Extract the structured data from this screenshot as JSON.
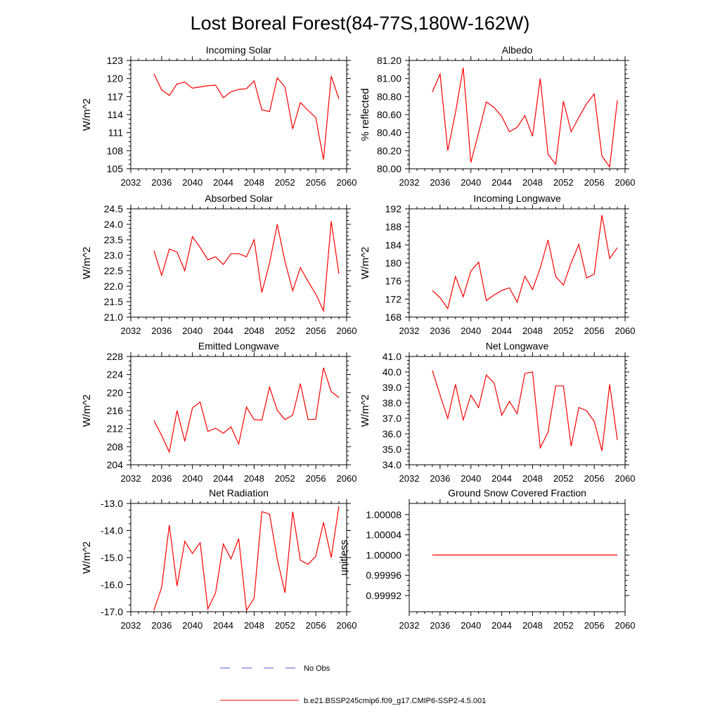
{
  "figure": {
    "title": "Lost Boreal Forest(84-77S,180W-162W)",
    "legend": {
      "entries": [
        {
          "label": "No Obs",
          "color": "#5a5ad0",
          "style": "dashed"
        },
        {
          "label": "b.e21.BSSP245cmip6.f09_g17.CMIP6-SSP2-4.5.001",
          "color": "#ff0000",
          "style": "solid"
        }
      ]
    }
  },
  "chart_data": [
    {
      "type": "line",
      "title": "Incoming Solar",
      "ylabel": "W/m^2",
      "xlim": [
        2032,
        2060
      ],
      "ylim": [
        105,
        123
      ],
      "xticks": [
        "2032",
        "2036",
        "2040",
        "2044",
        "2048",
        "2052",
        "2056",
        "2060"
      ],
      "yticks": [
        "105",
        "108",
        "111",
        "114",
        "117",
        "120",
        "123"
      ],
      "series": [
        {
          "color": "#ff0000",
          "x": [
            2035,
            2036,
            2037,
            2038,
            2039,
            2040,
            2041,
            2042,
            2043,
            2044,
            2045,
            2046,
            2047,
            2048,
            2049,
            2050,
            2051,
            2052,
            2053,
            2054,
            2055,
            2056,
            2057,
            2058,
            2059
          ],
          "values": [
            120.8,
            118.1,
            117.2,
            119.1,
            119.4,
            118.4,
            118.6,
            118.8,
            118.9,
            116.8,
            117.8,
            118.2,
            118.3,
            119.6,
            114.8,
            114.5,
            120.1,
            118.6,
            111.6,
            116.0,
            114.7,
            113.5,
            106.5,
            120.4,
            116.6
          ]
        }
      ]
    },
    {
      "type": "line",
      "title": "Albedo",
      "ylabel": "% reflected",
      "xlim": [
        2032,
        2060
      ],
      "ylim": [
        80.0,
        81.2
      ],
      "xticks": [
        "2032",
        "2036",
        "2040",
        "2044",
        "2048",
        "2052",
        "2056",
        "2060"
      ],
      "yticks": [
        "80.00",
        "80.20",
        "80.40",
        "80.60",
        "80.80",
        "81.00",
        "81.20"
      ],
      "series": [
        {
          "color": "#ff0000",
          "x": [
            2035,
            2036,
            2037,
            2038,
            2039,
            2040,
            2041,
            2042,
            2043,
            2044,
            2045,
            2046,
            2047,
            2048,
            2049,
            2050,
            2051,
            2052,
            2053,
            2054,
            2055,
            2056,
            2057,
            2058,
            2059
          ],
          "values": [
            80.85,
            81.05,
            80.2,
            80.62,
            81.12,
            80.07,
            80.4,
            80.74,
            80.68,
            80.58,
            80.41,
            80.46,
            80.59,
            80.36,
            81.0,
            80.16,
            80.05,
            80.75,
            80.41,
            80.57,
            80.72,
            80.83,
            80.14,
            80.02,
            80.76
          ]
        }
      ]
    },
    {
      "type": "line",
      "title": "Absorbed Solar",
      "ylabel": "W/m^2",
      "xlim": [
        2032,
        2060
      ],
      "ylim": [
        21.0,
        24.5
      ],
      "xticks": [
        "2032",
        "2036",
        "2040",
        "2044",
        "2048",
        "2052",
        "2056",
        "2060"
      ],
      "yticks": [
        "21.0",
        "21.5",
        "22.0",
        "22.5",
        "23.0",
        "23.5",
        "24.0",
        "24.5"
      ],
      "series": [
        {
          "color": "#ff0000",
          "x": [
            2035,
            2036,
            2037,
            2038,
            2039,
            2040,
            2041,
            2042,
            2043,
            2044,
            2045,
            2046,
            2047,
            2048,
            2049,
            2050,
            2051,
            2052,
            2053,
            2054,
            2055,
            2056,
            2057,
            2058,
            2059
          ],
          "values": [
            23.15,
            22.35,
            23.2,
            23.1,
            22.5,
            23.6,
            23.25,
            22.85,
            22.95,
            22.7,
            23.05,
            23.05,
            22.95,
            23.5,
            21.8,
            22.75,
            24.0,
            22.8,
            21.85,
            22.6,
            22.15,
            21.75,
            21.2,
            24.1,
            22.4
          ]
        }
      ]
    },
    {
      "type": "line",
      "title": "Incoming Longwave",
      "ylabel": "W/m^2",
      "xlim": [
        2032,
        2060
      ],
      "ylim": [
        168,
        192
      ],
      "xticks": [
        "2032",
        "2036",
        "2040",
        "2044",
        "2048",
        "2052",
        "2056",
        "2060"
      ],
      "yticks": [
        "168",
        "172",
        "176",
        "180",
        "184",
        "188",
        "192"
      ],
      "series": [
        {
          "color": "#ff0000",
          "x": [
            2035,
            2036,
            2037,
            2038,
            2039,
            2040,
            2041,
            2042,
            2043,
            2044,
            2045,
            2046,
            2047,
            2048,
            2049,
            2050,
            2051,
            2052,
            2053,
            2054,
            2055,
            2056,
            2057,
            2058,
            2059
          ],
          "values": [
            173.9,
            172.3,
            169.9,
            177.0,
            172.5,
            178.2,
            180.2,
            171.7,
            172.9,
            173.9,
            174.5,
            171.3,
            177.1,
            174.1,
            178.9,
            185.1,
            177.0,
            175.1,
            180.0,
            184.1,
            176.7,
            177.5,
            190.6,
            181.0,
            183.4
          ]
        }
      ]
    },
    {
      "type": "line",
      "title": "Emitted Longwave",
      "ylabel": "W/m^2",
      "xlim": [
        2032,
        2060
      ],
      "ylim": [
        204,
        228
      ],
      "xticks": [
        "2032",
        "2036",
        "2040",
        "2044",
        "2048",
        "2052",
        "2056",
        "2060"
      ],
      "yticks": [
        "204",
        "208",
        "212",
        "216",
        "220",
        "224",
        "228"
      ],
      "series": [
        {
          "color": "#ff0000",
          "x": [
            2035,
            2036,
            2037,
            2038,
            2039,
            2040,
            2041,
            2042,
            2043,
            2044,
            2045,
            2046,
            2047,
            2048,
            2049,
            2050,
            2051,
            2052,
            2053,
            2054,
            2055,
            2056,
            2057,
            2058,
            2059
          ],
          "values": [
            213.8,
            210.5,
            206.8,
            216.0,
            209.2,
            216.6,
            217.9,
            211.4,
            212.1,
            211.0,
            212.4,
            208.6,
            216.8,
            214.0,
            213.9,
            221.2,
            216.1,
            214.0,
            215.0,
            222.0,
            214.0,
            214.1,
            225.5,
            220.2,
            218.9
          ]
        }
      ]
    },
    {
      "type": "line",
      "title": "Net Longwave",
      "ylabel": "W/m^2",
      "xlim": [
        2032,
        2060
      ],
      "ylim": [
        34.0,
        41.0
      ],
      "xticks": [
        "2032",
        "2036",
        "2040",
        "2044",
        "2048",
        "2052",
        "2056",
        "2060"
      ],
      "yticks": [
        "34.0",
        "35.0",
        "36.0",
        "37.0",
        "38.0",
        "39.0",
        "40.0",
        "41.0"
      ],
      "series": [
        {
          "color": "#ff0000",
          "x": [
            2035,
            2036,
            2037,
            2038,
            2039,
            2040,
            2041,
            2042,
            2043,
            2044,
            2045,
            2046,
            2047,
            2048,
            2049,
            2050,
            2051,
            2052,
            2053,
            2054,
            2055,
            2056,
            2057,
            2058,
            2059
          ],
          "values": [
            40.1,
            38.5,
            37.0,
            39.2,
            36.9,
            38.5,
            37.7,
            39.8,
            39.3,
            37.2,
            38.1,
            37.3,
            39.9,
            40.0,
            35.1,
            36.1,
            39.1,
            39.1,
            35.2,
            37.7,
            37.5,
            36.8,
            34.9,
            39.2,
            35.6
          ]
        }
      ]
    },
    {
      "type": "line",
      "title": "Net Radiation",
      "ylabel": "W/m^2",
      "xlim": [
        2032,
        2060
      ],
      "ylim": [
        -17.0,
        -13.0
      ],
      "xticks": [
        "2032",
        "2036",
        "2040",
        "2044",
        "2048",
        "2052",
        "2056",
        "2060"
      ],
      "yticks": [
        "-17.0",
        "-16.0",
        "-15.0",
        "-14.0",
        "-13.0"
      ],
      "series": [
        {
          "color": "#ff0000",
          "x": [
            2035,
            2036,
            2037,
            2038,
            2039,
            2040,
            2041,
            2042,
            2043,
            2044,
            2045,
            2046,
            2047,
            2048,
            2049,
            2050,
            2051,
            2052,
            2053,
            2054,
            2055,
            2056,
            2057,
            2058,
            2059
          ],
          "values": [
            -16.95,
            -16.1,
            -13.8,
            -16.05,
            -14.4,
            -14.85,
            -14.45,
            -16.9,
            -16.3,
            -14.5,
            -15.05,
            -14.3,
            -16.95,
            -16.5,
            -13.3,
            -13.4,
            -15.05,
            -16.3,
            -13.3,
            -15.1,
            -15.25,
            -14.95,
            -13.7,
            -15.0,
            -13.1
          ]
        }
      ]
    },
    {
      "type": "line",
      "title": "Ground Snow Covered Fraction",
      "ylabel": "unitless",
      "xlim": [
        2032,
        2060
      ],
      "ylim": [
        0.999888,
        1.000102
      ],
      "xticks": [
        "2032",
        "2036",
        "2040",
        "2044",
        "2048",
        "2052",
        "2056",
        "2060"
      ],
      "yticks": [
        "0.99992",
        "0.99996",
        "1.00000",
        "1.00004",
        "1.00008"
      ],
      "series": [
        {
          "color": "#ff0000",
          "x": [
            2035,
            2059
          ],
          "values": [
            1.0,
            1.0
          ]
        }
      ]
    }
  ]
}
